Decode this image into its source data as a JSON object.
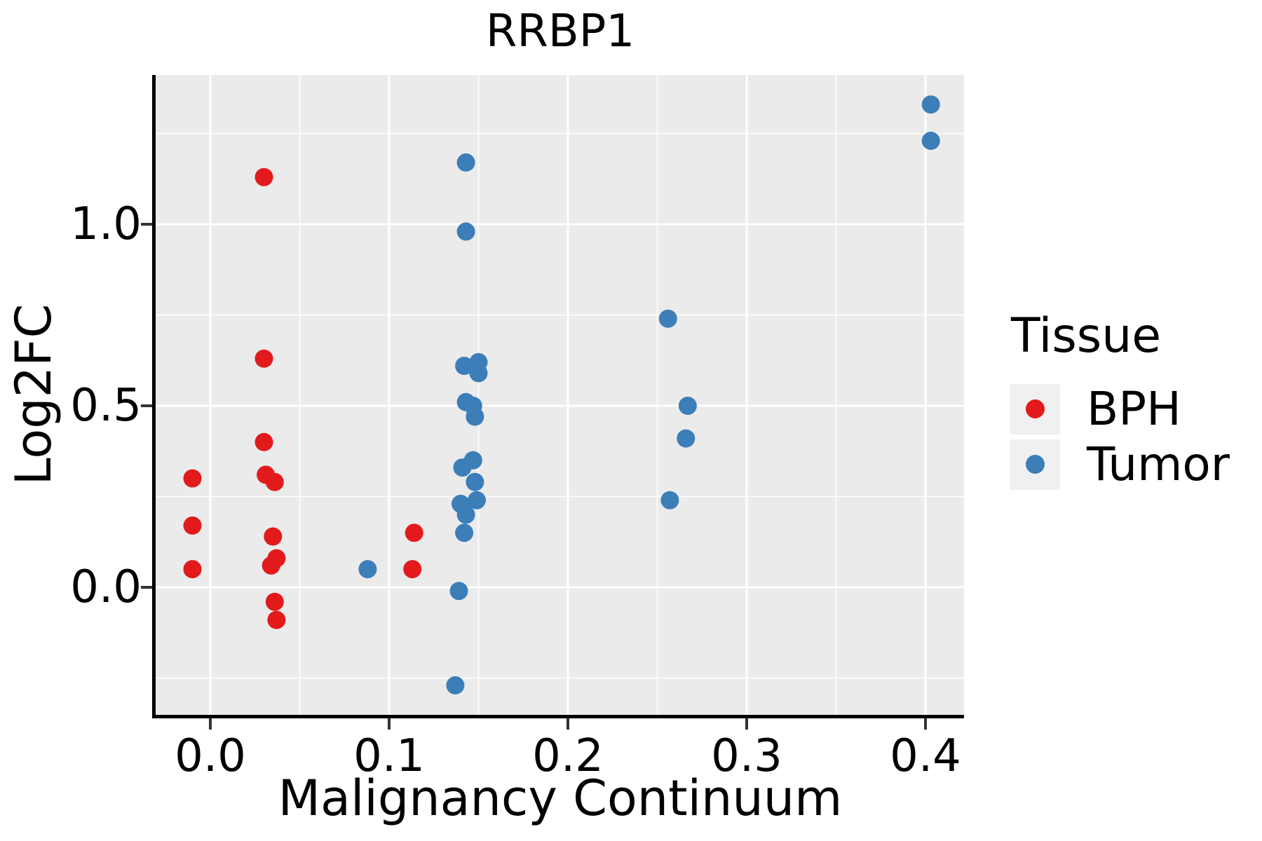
{
  "title": "RRBP1",
  "axes": {
    "x": {
      "label": "Malignancy Continuum",
      "tick_labels": [
        "0.0",
        "0.1",
        "0.2",
        "0.3",
        "0.4"
      ],
      "tick_values": [
        0.0,
        0.1,
        0.2,
        0.3,
        0.4
      ],
      "minor_values": [
        0.05,
        0.15,
        0.25,
        0.35
      ],
      "range": [
        -0.031,
        0.423
      ]
    },
    "y": {
      "label": "Log2FC",
      "tick_labels": [
        "0.0",
        "0.5",
        "1.0"
      ],
      "tick_values": [
        0.0,
        0.5,
        1.0
      ],
      "minor_values": [
        -0.25,
        0.25,
        0.75,
        1.25
      ],
      "range": [
        -0.352,
        1.411
      ]
    }
  },
  "legend": {
    "title": "Tissue",
    "items": [
      {
        "label": "BPH",
        "color": "#E31A1C"
      },
      {
        "label": "Tumor",
        "color": "#3B7EB8"
      }
    ]
  },
  "colors": {
    "panel_bg": "#EBEBEB",
    "grid_major": "#FFFFFF",
    "grid_minor": "#FFFFFF",
    "axis_line": "#000000",
    "tick_mark": "#333333",
    "legend_key_bg": "#F0F0F0",
    "text": "#000000"
  },
  "chart_data": {
    "type": "scatter",
    "title": "RRBP1",
    "xlabel": "Malignancy Continuum",
    "ylabel": "Log2FC",
    "xlim": [
      -0.031,
      0.423
    ],
    "ylim": [
      -0.352,
      1.411
    ],
    "grid": true,
    "legend_title": "Tissue",
    "legend_position": "right",
    "marker_radius_px": 13,
    "series": [
      {
        "name": "BPH",
        "color": "#E31A1C",
        "points": [
          [
            -0.01,
            0.3
          ],
          [
            -0.01,
            0.17
          ],
          [
            -0.01,
            0.05
          ],
          [
            0.03,
            1.13
          ],
          [
            0.03,
            0.63
          ],
          [
            0.03,
            0.4
          ],
          [
            0.031,
            0.31
          ],
          [
            0.036,
            0.29
          ],
          [
            0.035,
            0.14
          ],
          [
            0.037,
            0.08
          ],
          [
            0.034,
            0.06
          ],
          [
            0.036,
            -0.04
          ],
          [
            0.037,
            -0.09
          ],
          [
            0.114,
            0.15
          ],
          [
            0.113,
            0.05
          ]
        ]
      },
      {
        "name": "Tumor",
        "color": "#3B7EB8",
        "points": [
          [
            0.088,
            0.05
          ],
          [
            0.143,
            1.17
          ],
          [
            0.143,
            0.98
          ],
          [
            0.142,
            0.61
          ],
          [
            0.15,
            0.62
          ],
          [
            0.15,
            0.59
          ],
          [
            0.143,
            0.51
          ],
          [
            0.147,
            0.5
          ],
          [
            0.148,
            0.47
          ],
          [
            0.147,
            0.35
          ],
          [
            0.141,
            0.33
          ],
          [
            0.148,
            0.29
          ],
          [
            0.14,
            0.23
          ],
          [
            0.149,
            0.24
          ],
          [
            0.143,
            0.2
          ],
          [
            0.142,
            0.15
          ],
          [
            0.139,
            -0.01
          ],
          [
            0.137,
            -0.27
          ],
          [
            0.256,
            0.74
          ],
          [
            0.267,
            0.5
          ],
          [
            0.266,
            0.41
          ],
          [
            0.257,
            0.24
          ],
          [
            0.403,
            1.33
          ],
          [
            0.403,
            1.23
          ]
        ]
      }
    ]
  }
}
